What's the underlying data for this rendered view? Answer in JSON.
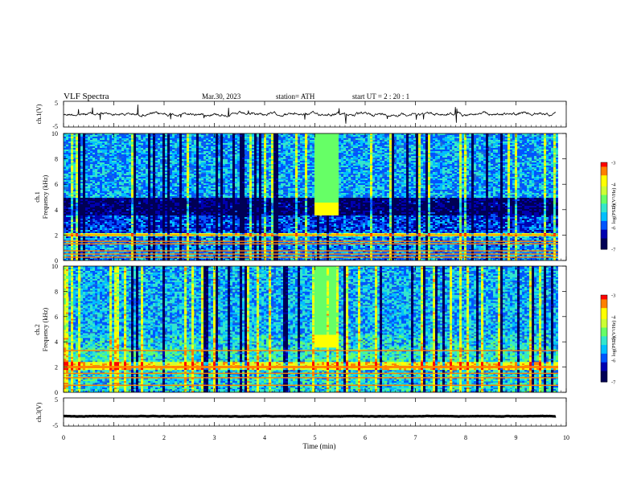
{
  "header": {
    "title": "VLF  Spectra",
    "date": "Mar.30, 2023",
    "station": "station= ATH",
    "start": "start  UT  =   2  : 20 : 1"
  },
  "colors": {
    "spectrogram_bg": "#1f6fd6",
    "cmap": [
      "#000055",
      "#0000b0",
      "#0055ff",
      "#00bfff",
      "#33e6cc",
      "#66ff66",
      "#ccff33",
      "#ffff00",
      "#ff8000",
      "#ff0000",
      "#ffffff"
    ]
  },
  "chart_data": [
    {
      "type": "line",
      "name": "ch1-waveform",
      "ylabel": "ch.1(V)",
      "ylim": [
        -5,
        5
      ],
      "yticks": [
        "5",
        "-5"
      ],
      "xlim": [
        0,
        10
      ],
      "x_end_min": 9.8,
      "approx_level_volts": 0
    },
    {
      "type": "heatmap",
      "name": "ch1-spectrogram",
      "ylabel_channel": "ch.1",
      "ylabel": "Frequency  (kHz)",
      "ylim": [
        0,
        10
      ],
      "yticks": [
        "0",
        "2",
        "4",
        "6",
        "8",
        "10"
      ],
      "xlim": [
        0,
        10
      ],
      "x_end_min": 9.8,
      "colorbar": {
        "label": "log(PSD)(V²/Hz)",
        "range": [
          -7,
          -3
        ],
        "ticks": [
          "-3",
          "-4",
          "-5",
          "-6",
          "-7"
        ]
      }
    },
    {
      "type": "heatmap",
      "name": "ch2-spectrogram",
      "ylabel_channel": "ch.2",
      "ylabel": "Frequency  (kHz)",
      "ylim": [
        0,
        10
      ],
      "yticks": [
        "0",
        "2",
        "4",
        "6",
        "8",
        "10"
      ],
      "xlim": [
        0,
        10
      ],
      "x_end_min": 9.8,
      "colorbar": {
        "label": "log(PSD)(V²/Hz)",
        "range": [
          -7,
          -3
        ],
        "ticks": [
          "-3",
          "-4",
          "-5",
          "-6",
          "-7"
        ]
      }
    },
    {
      "type": "line",
      "name": "ch3-waveform",
      "ylabel": "ch.3(V)",
      "ylim": [
        -5,
        5
      ],
      "yticks": [
        "5",
        "-5"
      ],
      "xlim": [
        0,
        10
      ],
      "x_end_min": 9.8,
      "approx_level_volts": -1.5,
      "xlabel": "Time  (min)",
      "xticks": [
        "0",
        "1",
        "2",
        "3",
        "4",
        "5",
        "6",
        "7",
        "8",
        "9",
        "10"
      ]
    }
  ]
}
